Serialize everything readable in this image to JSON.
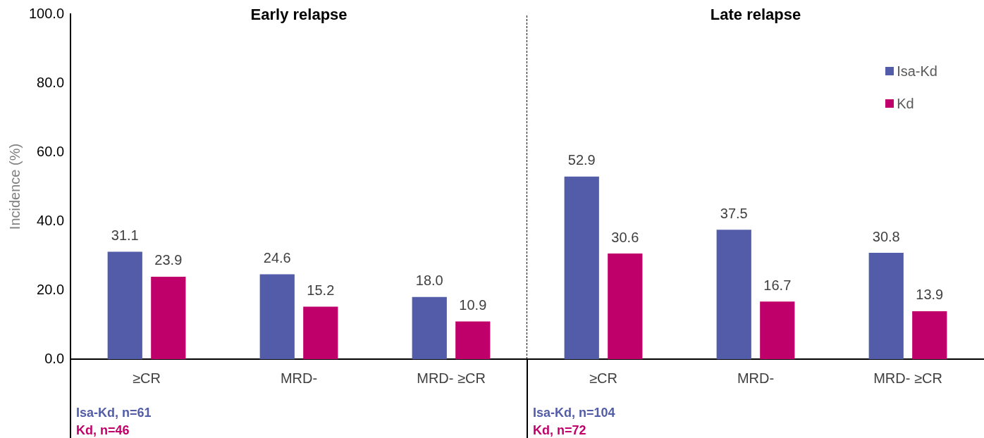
{
  "chart_data": {
    "type": "bar",
    "categories": [
      "≥CR",
      "MRD-",
      "MRD- ≥CR",
      "≥CR",
      "MRD-",
      "MRD- ≥CR"
    ],
    "series": [
      {
        "name": "Isa-Kd",
        "color": "#525ca8",
        "values": [
          31.1,
          24.6,
          18.0,
          52.9,
          37.5,
          30.8
        ],
        "value_labels": [
          "31.1",
          "24.6",
          "18.0",
          "52.9",
          "37.5",
          "30.8"
        ]
      },
      {
        "name": "Kd",
        "color": "#c0006a",
        "values": [
          23.9,
          15.2,
          10.9,
          30.6,
          16.7,
          13.9
        ],
        "value_labels": [
          "23.9",
          "15.2",
          "10.9",
          "30.6",
          "16.7",
          "13.9"
        ]
      }
    ],
    "ylabel": "Incidence (%)",
    "ylim": [
      0,
      100
    ],
    "yticks": [
      {
        "value": 0,
        "label": "0.0"
      },
      {
        "value": 20,
        "label": "20.0"
      },
      {
        "value": 40,
        "label": "40.0"
      },
      {
        "value": 60,
        "label": "60.0"
      },
      {
        "value": 80,
        "label": "80.0"
      },
      {
        "value": 100,
        "label": "100.0"
      }
    ],
    "grid": false,
    "legend": "top right",
    "annotations": [
      "Early relapse",
      "Late relapse",
      "Isa-Kd, n=61",
      "Kd, n=46",
      "Isa-Kd, n=104",
      "Kd, n=72"
    ]
  }
}
